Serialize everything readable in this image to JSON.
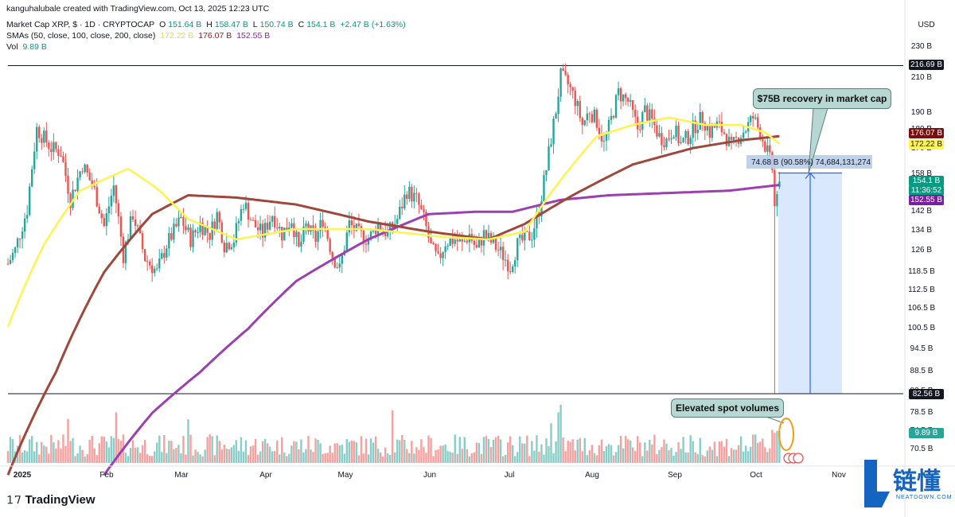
{
  "header": {
    "attribution": "kanguhalubale created with TradingView.com, Oct 13, 2025 12:23 UTC",
    "symbol": "Market Cap XRP, $ · 1D · CRYPTOCAP",
    "ohlc": {
      "o_label": "O",
      "o": "151.64 B",
      "h_label": "H",
      "h": "158.47 B",
      "l_label": "L",
      "l": "150.74 B",
      "c_label": "C",
      "c": "154.1 B",
      "change": "+2.47 B (+1.63%)"
    },
    "sma_label": "SMAs (50, close, 100, close, 200, close)",
    "sma_values": {
      "sma50": "172.22 B",
      "sma100": "176.07 B",
      "sma200": "152.55 B"
    },
    "vol_label": "Vol",
    "vol_value": "9.89 B"
  },
  "currency": "USD",
  "price_tags": {
    "resistance": "216.69 B",
    "sma100": "176.07 B",
    "sma50": "172.22 B",
    "last": "154.1 B",
    "countdown": "11:36:52",
    "sma200": "152.55 B",
    "support": "82.56 B",
    "volume": "9.89 B"
  },
  "measure_label": "74.68 B (90.58%) 74,684,131,274",
  "callouts": {
    "recovery": "$75B recovery in market cap",
    "volumes": "Elevated spot volumes"
  },
  "branding": {
    "tradingview": "TradingView",
    "neatdown_cn": "链懂",
    "neatdown_en": "NEATDOWN.COM"
  },
  "colors": {
    "up": "#26a69a",
    "down": "#ef5350",
    "sma50": "#fff44f",
    "sma100": "#a0473c",
    "sma200": "#9c3fb0",
    "measure": "#cfe2fb",
    "measure_line": "#2962ff"
  },
  "chart_data": {
    "type": "candlestick",
    "title": "Market Cap XRP, $ · 1D · CRYPTOCAP",
    "y_ticks": [
      "230 B",
      "210 B",
      "190 B",
      "180 B",
      "170 B",
      "158 B",
      "142 B",
      "134 B",
      "126 B",
      "118.5 B",
      "112.5 B",
      "106.5 B",
      "100.5 B",
      "94.5 B",
      "88.5 B",
      "82.5 B",
      "78.5 B",
      "74.5 B",
      "70.5 B"
    ],
    "x_ticks": [
      "2025",
      "Feb",
      "Mar",
      "Apr",
      "May",
      "Jun",
      "Jul",
      "Aug",
      "Sep",
      "Oct",
      "Nov"
    ],
    "y_scale": "log",
    "horizontal_lines": [
      216.69,
      82.56
    ],
    "anchors_close": [
      [
        0,
        121
      ],
      [
        3,
        126
      ],
      [
        8,
        142
      ],
      [
        12,
        180
      ],
      [
        18,
        170
      ],
      [
        22,
        168
      ],
      [
        26,
        146
      ],
      [
        31,
        162
      ],
      [
        36,
        150
      ],
      [
        40,
        135
      ],
      [
        44,
        152
      ],
      [
        48,
        124
      ],
      [
        52,
        140
      ],
      [
        57,
        123
      ],
      [
        62,
        118
      ],
      [
        66,
        128
      ],
      [
        72,
        138
      ],
      [
        76,
        130
      ],
      [
        80,
        136
      ],
      [
        84,
        132
      ],
      [
        87,
        140
      ],
      [
        90,
        128
      ],
      [
        94,
        130
      ],
      [
        98,
        145
      ],
      [
        102,
        136
      ],
      [
        106,
        132
      ],
      [
        110,
        140
      ],
      [
        114,
        132
      ],
      [
        118,
        138
      ],
      [
        121,
        126
      ],
      [
        124,
        135
      ],
      [
        128,
        130
      ],
      [
        131,
        138
      ],
      [
        135,
        124
      ],
      [
        138,
        119
      ],
      [
        142,
        136
      ],
      [
        146,
        132
      ],
      [
        150,
        130
      ],
      [
        154,
        136
      ],
      [
        158,
        132
      ],
      [
        162,
        138
      ],
      [
        166,
        150
      ],
      [
        170,
        146
      ],
      [
        173,
        138
      ],
      [
        176,
        127
      ],
      [
        179,
        122
      ],
      [
        182,
        129
      ],
      [
        186,
        130
      ],
      [
        189,
        128
      ],
      [
        192,
        132
      ],
      [
        195,
        126
      ],
      [
        198,
        132
      ],
      [
        202,
        128
      ],
      [
        206,
        124
      ],
      [
        209,
        120
      ],
      [
        212,
        128
      ],
      [
        215,
        130
      ],
      [
        218,
        132
      ],
      [
        221,
        142
      ],
      [
        224,
        160
      ],
      [
        228,
        190
      ],
      [
        230,
        210
      ],
      [
        233,
        205
      ],
      [
        236,
        196
      ],
      [
        239,
        182
      ],
      [
        242,
        190
      ],
      [
        245,
        184
      ],
      [
        248,
        172
      ],
      [
        251,
        185
      ],
      [
        254,
        200
      ],
      [
        258,
        195
      ],
      [
        262,
        180
      ],
      [
        265,
        190
      ],
      [
        268,
        184
      ],
      [
        271,
        176
      ],
      [
        274,
        174
      ],
      [
        277,
        180
      ],
      [
        280,
        172
      ],
      [
        283,
        176
      ],
      [
        286,
        182
      ],
      [
        289,
        186
      ],
      [
        292,
        178
      ],
      [
        295,
        182
      ],
      [
        298,
        178
      ],
      [
        301,
        170
      ],
      [
        304,
        176
      ],
      [
        307,
        180
      ],
      [
        310,
        186
      ],
      [
        313,
        178
      ],
      [
        316,
        168
      ],
      [
        318,
        160
      ],
      [
        319,
        146
      ],
      [
        320,
        148
      ],
      [
        321,
        154.1
      ]
    ],
    "sma50_points": [
      [
        0,
        100.5
      ],
      [
        15,
        128
      ],
      [
        30,
        150
      ],
      [
        50,
        160
      ],
      [
        62,
        151
      ],
      [
        75,
        138
      ],
      [
        95,
        130
      ],
      [
        120,
        134
      ],
      [
        150,
        134
      ],
      [
        180,
        131
      ],
      [
        200,
        130
      ],
      [
        215,
        133
      ],
      [
        228,
        152
      ],
      [
        245,
        176
      ],
      [
        260,
        182
      ],
      [
        275,
        186
      ],
      [
        290,
        182
      ],
      [
        305,
        182
      ],
      [
        315,
        178
      ],
      [
        321,
        172.22
      ]
    ],
    "sma100_points": [
      [
        0,
        65
      ],
      [
        20,
        88
      ],
      [
        40,
        118
      ],
      [
        60,
        140
      ],
      [
        75,
        148
      ],
      [
        95,
        147
      ],
      [
        120,
        144
      ],
      [
        150,
        137
      ],
      [
        175,
        133
      ],
      [
        200,
        130
      ],
      [
        215,
        136
      ],
      [
        235,
        148
      ],
      [
        260,
        162
      ],
      [
        285,
        170
      ],
      [
        305,
        174
      ],
      [
        321,
        176.07
      ]
    ],
    "sma200_points": [
      [
        40,
        65
      ],
      [
        60,
        78
      ],
      [
        80,
        88
      ],
      [
        100,
        100
      ],
      [
        120,
        115
      ],
      [
        150,
        130
      ],
      [
        175,
        140
      ],
      [
        195,
        141
      ],
      [
        210,
        141
      ],
      [
        230,
        146
      ],
      [
        250,
        148
      ],
      [
        275,
        149
      ],
      [
        300,
        150
      ],
      [
        321,
        152.55
      ]
    ],
    "volume_bn_levels": {
      "max_visible": 35,
      "last": 9.89
    }
  }
}
